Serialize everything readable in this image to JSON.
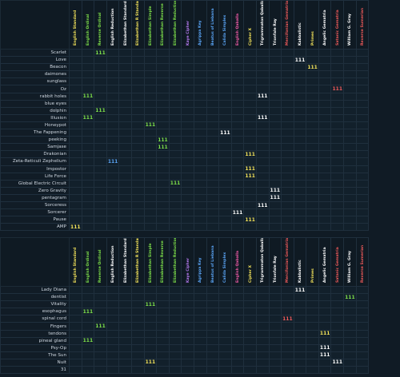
{
  "columns": [
    {
      "label": "English Standard",
      "color": "#f3e35a"
    },
    {
      "label": "English Ordinal",
      "color": "#7ee04a"
    },
    {
      "label": "Reverse Ordinal",
      "color": "#7ee04a"
    },
    {
      "label": "English Reduction",
      "color": "#ffffff"
    },
    {
      "label": "Elizabethan Standard",
      "color": "#ffffff"
    },
    {
      "label": "Elizabethan R Standard",
      "color": "#f3e35a"
    },
    {
      "label": "Elizabethan Simple",
      "color": "#7ee04a"
    },
    {
      "label": "Elizabethan Reverse",
      "color": "#7ee04a"
    },
    {
      "label": "Elizabethan Reduction",
      "color": "#7ee04a"
    },
    {
      "label": "Kaye Cipher",
      "color": "#b67af0"
    },
    {
      "label": "Agrippa Key",
      "color": "#5aa4f5"
    },
    {
      "label": "Beatus of Liebana",
      "color": "#5aa4f5"
    },
    {
      "label": "Calida Simplex",
      "color": "#5aa4f5"
    },
    {
      "label": "English Qaballa",
      "color": "#f05aa8"
    },
    {
      "label": "Cipher X",
      "color": "#f3e35a"
    },
    {
      "label": "Trigrammaton Qaballah",
      "color": "#ffffff"
    },
    {
      "label": "Trionfale Ray",
      "color": "#ffffff"
    },
    {
      "label": "Mercifonian Gematria",
      "color": "#f05a5a"
    },
    {
      "label": "Kabbalistic",
      "color": "#ffffff"
    },
    {
      "label": "Primes",
      "color": "#f3e35a"
    },
    {
      "label": "Angelic Gematria",
      "color": "#ffffff"
    },
    {
      "label": "Satanic Gematria",
      "color": "#f05a5a"
    },
    {
      "label": "William G. Gray",
      "color": "#ffffff"
    },
    {
      "label": "Reverse Sumerian",
      "color": "#f05a5a"
    }
  ],
  "section1": {
    "rows": [
      {
        "label": "Scarlet",
        "marks": [
          {
            "col": 2,
            "text": "111",
            "color": "green"
          }
        ]
      },
      {
        "label": "Love",
        "marks": [
          {
            "col": 18,
            "text": "111",
            "color": "white"
          }
        ]
      },
      {
        "label": "Beacon",
        "marks": [
          {
            "col": 19,
            "text": "111",
            "color": "yellow"
          }
        ]
      },
      {
        "label": "daimones",
        "marks": []
      },
      {
        "label": "sunglass",
        "marks": []
      },
      {
        "label": "Oz",
        "marks": [
          {
            "col": 21,
            "text": "111",
            "color": "red"
          }
        ]
      },
      {
        "label": "rabbit holes",
        "marks": [
          {
            "col": 1,
            "text": "111",
            "color": "green"
          },
          {
            "col": 15,
            "text": "111",
            "color": "white"
          }
        ]
      },
      {
        "label": "blue eyes",
        "marks": []
      },
      {
        "label": "dolphin",
        "marks": [
          {
            "col": 2,
            "text": "111",
            "color": "green"
          }
        ]
      },
      {
        "label": "Illusion",
        "marks": [
          {
            "col": 1,
            "text": "111",
            "color": "green"
          },
          {
            "col": 15,
            "text": "111",
            "color": "white"
          }
        ]
      },
      {
        "label": "Honeypot",
        "marks": [
          {
            "col": 6,
            "text": "111",
            "color": "green"
          }
        ]
      },
      {
        "label": "The Fappening",
        "marks": [
          {
            "col": 12,
            "text": "111",
            "color": "white"
          }
        ]
      },
      {
        "label": "peeking",
        "marks": [
          {
            "col": 7,
            "text": "111",
            "color": "green"
          }
        ]
      },
      {
        "label": "Samjase",
        "marks": [
          {
            "col": 7,
            "text": "111",
            "color": "green"
          }
        ]
      },
      {
        "label": "Drakonian",
        "marks": [
          {
            "col": 14,
            "text": "111",
            "color": "yellow"
          }
        ]
      },
      {
        "label": "Zeta-Reticuli Zephelium",
        "marks": [
          {
            "col": 3,
            "text": "111",
            "color": "blue"
          }
        ]
      },
      {
        "label": "Impostor",
        "marks": [
          {
            "col": 14,
            "text": "111",
            "color": "yellow"
          }
        ]
      },
      {
        "label": "Life Force",
        "marks": [
          {
            "col": 14,
            "text": "111",
            "color": "yellow"
          }
        ]
      },
      {
        "label": "Global Electric Circuit",
        "marks": [
          {
            "col": 8,
            "text": "111",
            "color": "green"
          }
        ]
      },
      {
        "label": "Zero Gravity",
        "marks": [
          {
            "col": 16,
            "text": "111",
            "color": "white"
          }
        ]
      },
      {
        "label": "pentagram",
        "marks": [
          {
            "col": 16,
            "text": "111",
            "color": "white"
          }
        ]
      },
      {
        "label": "Sorceress",
        "marks": [
          {
            "col": 15,
            "text": "111",
            "color": "white"
          }
        ]
      },
      {
        "label": "Sorcerer",
        "marks": [
          {
            "col": 13,
            "text": "111",
            "color": "white"
          }
        ]
      },
      {
        "label": "Pause",
        "marks": [
          {
            "col": 14,
            "text": "111",
            "color": "yellow"
          }
        ]
      },
      {
        "label": "AMP",
        "marks": [
          {
            "col": 0,
            "text": "111",
            "color": "yellow"
          }
        ]
      }
    ]
  },
  "section2": {
    "rows": [
      {
        "label": "Lady Diana",
        "marks": [
          {
            "col": 18,
            "text": "111",
            "color": "white"
          }
        ]
      },
      {
        "label": "dentist",
        "marks": [
          {
            "col": 22,
            "text": "111",
            "color": "green"
          }
        ]
      },
      {
        "label": "Vitality",
        "marks": [
          {
            "col": 6,
            "text": "111",
            "color": "green"
          }
        ]
      },
      {
        "label": "esophagus",
        "marks": [
          {
            "col": 1,
            "text": "111",
            "color": "green"
          }
        ]
      },
      {
        "label": "spinal cord",
        "marks": [
          {
            "col": 17,
            "text": "111",
            "color": "red"
          }
        ]
      },
      {
        "label": "Fingers",
        "marks": [
          {
            "col": 2,
            "text": "111",
            "color": "green"
          }
        ]
      },
      {
        "label": "tendons",
        "marks": [
          {
            "col": 20,
            "text": "111",
            "color": "yellow"
          }
        ]
      },
      {
        "label": "pineal gland",
        "marks": [
          {
            "col": 1,
            "text": "111",
            "color": "green"
          }
        ]
      },
      {
        "label": "Psy-Op",
        "marks": [
          {
            "col": 20,
            "text": "111",
            "color": "white"
          }
        ]
      },
      {
        "label": "The Sun",
        "marks": [
          {
            "col": 20,
            "text": "111",
            "color": "white"
          }
        ]
      },
      {
        "label": "Nuit",
        "marks": [
          {
            "col": 6,
            "text": "111",
            "color": "yellow"
          },
          {
            "col": 21,
            "text": "111",
            "color": "white"
          }
        ]
      },
      {
        "label": "31",
        "marks": []
      }
    ]
  }
}
